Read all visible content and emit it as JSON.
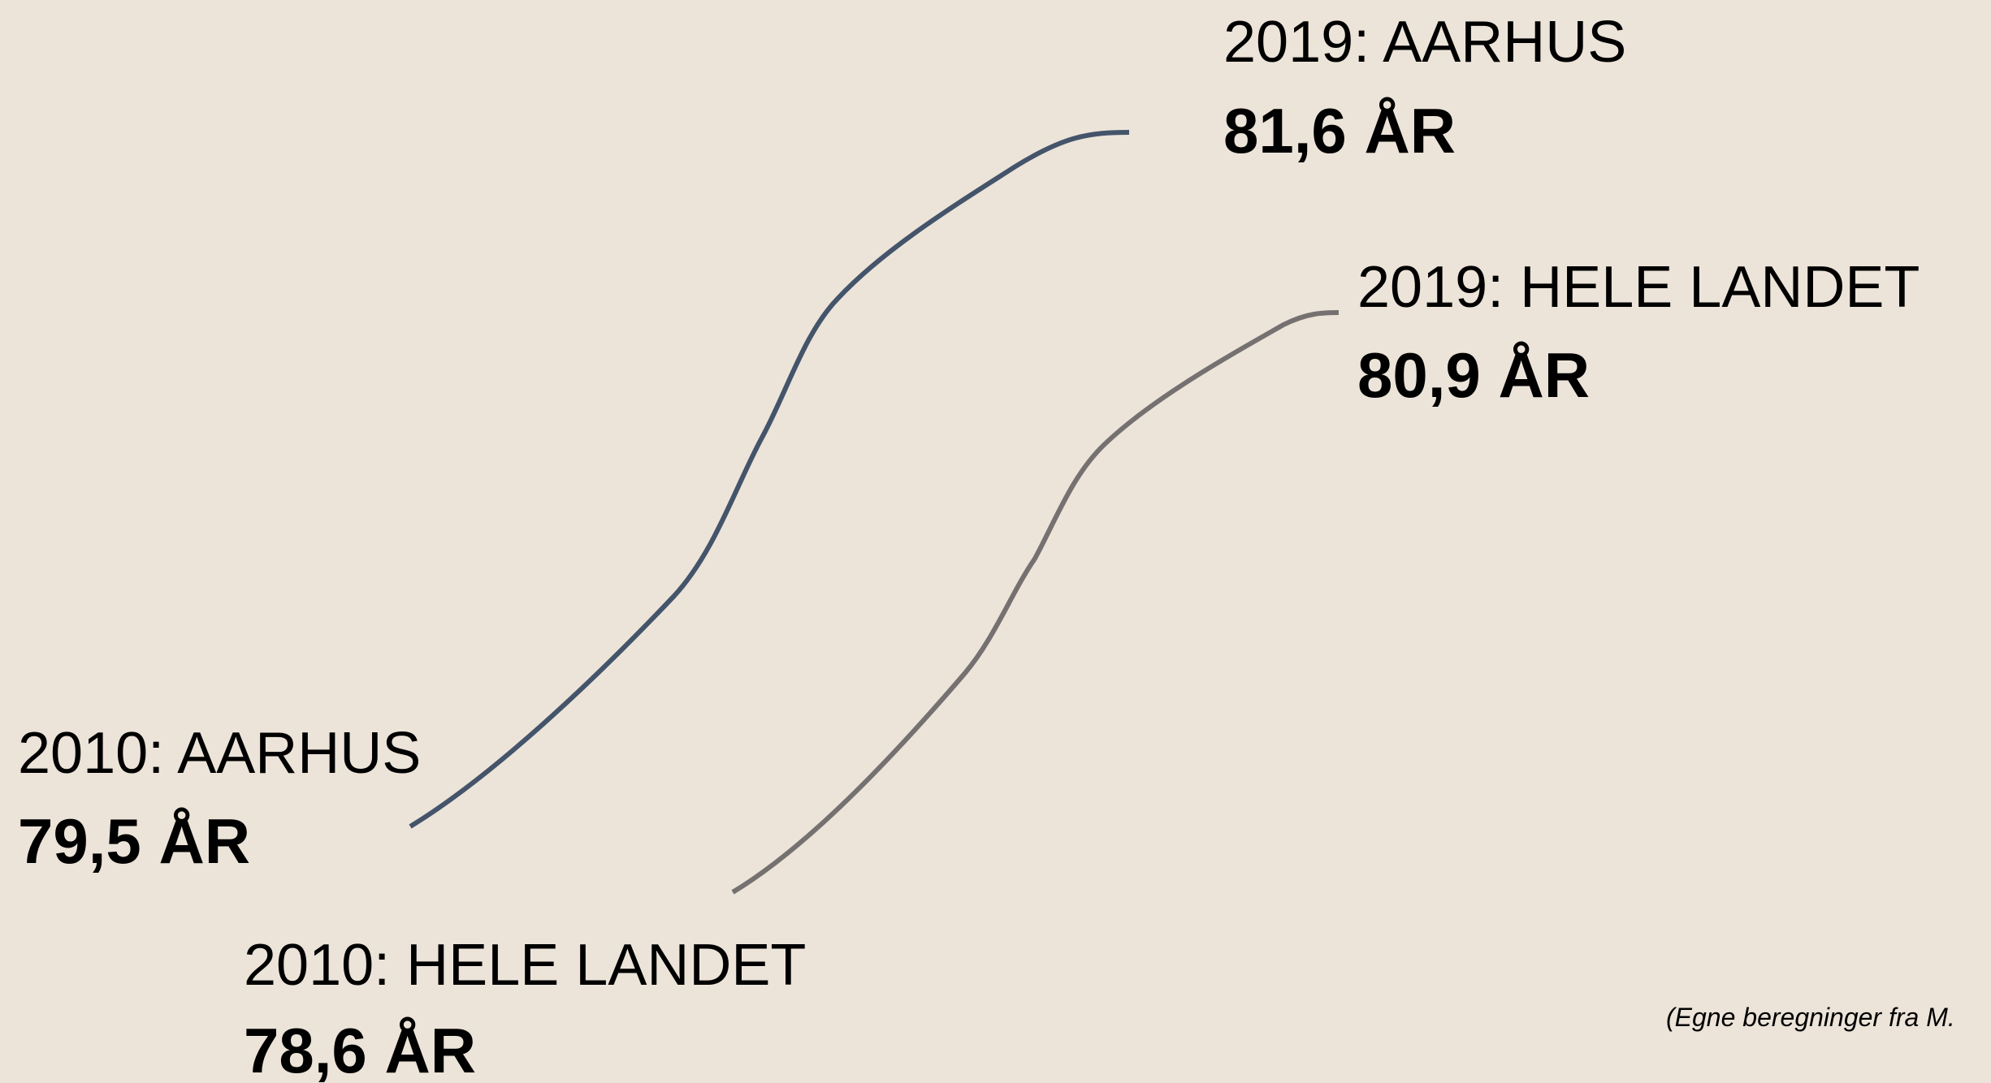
{
  "labels": [
    {
      "year": "2019: AARHUS",
      "value": "81,6 ÅR"
    },
    {
      "year": "2019: HELE LANDET",
      "value": "80,9 ÅR"
    },
    {
      "year": "2010: AARHUS",
      "value": "79,5 ÅR"
    },
    {
      "year": "2010: HELE LANDET",
      "value": "78,6 ÅR"
    }
  ],
  "source": "(Egne beregninger fra M."
}
